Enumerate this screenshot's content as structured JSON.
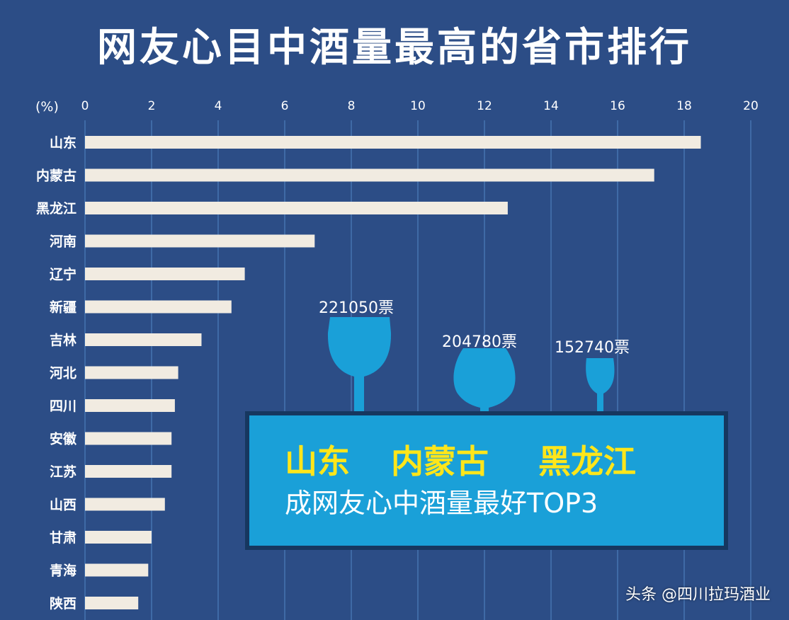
{
  "chart_data": {
    "type": "bar",
    "orientation": "horizontal",
    "title": "网友心目中酒量最高的省市排行",
    "unit_label": "(%)",
    "xlim": [
      0,
      20
    ],
    "xticks": [
      0,
      2,
      4,
      6,
      8,
      10,
      12,
      14,
      16,
      18,
      20
    ],
    "grid": true,
    "categories": [
      "山东",
      "内蒙古",
      "黑龙江",
      "河南",
      "辽宁",
      "新疆",
      "吉林",
      "河北",
      "四川",
      "安徽",
      "江苏",
      "山西",
      "甘肃",
      "青海",
      "陕西"
    ],
    "values": [
      18.5,
      17.1,
      12.7,
      6.9,
      4.8,
      4.4,
      3.5,
      2.8,
      2.7,
      2.6,
      2.6,
      2.4,
      2.0,
      1.9,
      1.6
    ]
  },
  "callout": {
    "votes": [
      "221050票",
      "204780票",
      "152740票"
    ],
    "top3": [
      "山东",
      "内蒙古",
      "黑龙江"
    ],
    "subtitle": "成网友心中酒量最好TOP3"
  },
  "watermark": "头条 @四川拉玛酒业",
  "colors": {
    "background": "#2c4d86",
    "bar": "#f1ebe1",
    "grid": "#3f6aa6",
    "callout_box": "#1aa0d8",
    "callout_border": "#16375f",
    "glass": "#1aa0d8",
    "top3_text": "#ffe61a",
    "text": "#ffffff"
  }
}
